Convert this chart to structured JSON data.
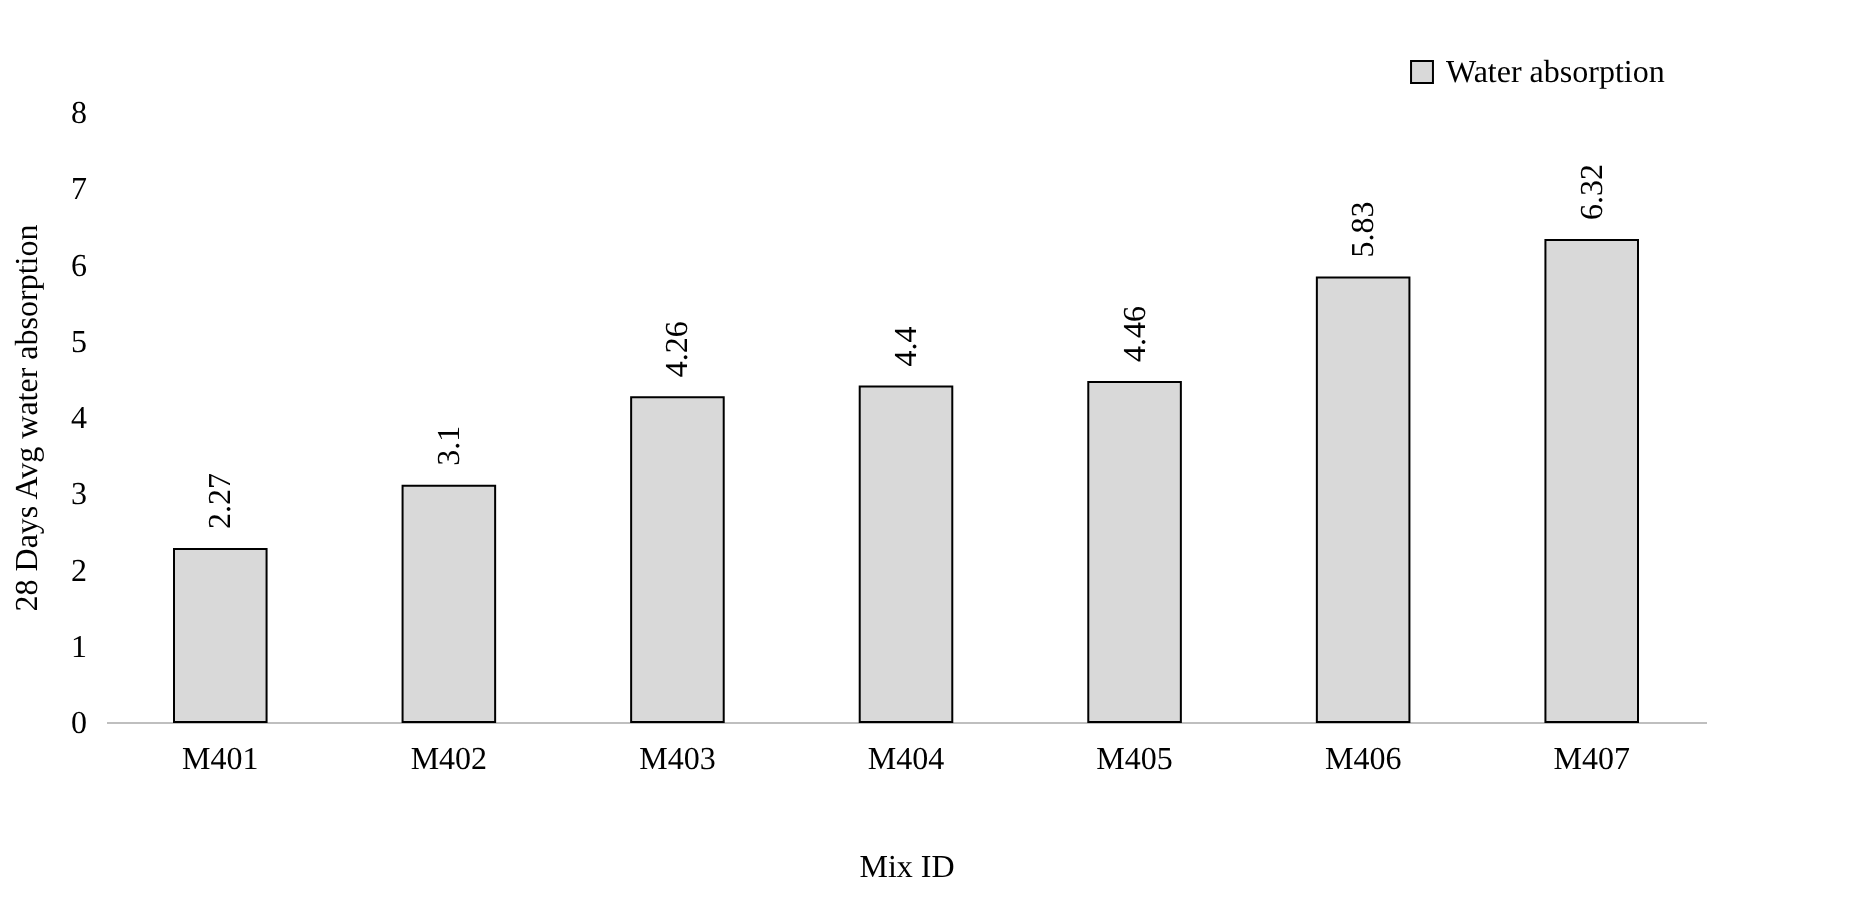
{
  "chart_data": {
    "type": "bar",
    "xlabel": "Mix ID",
    "ylabel": "28 Days Avg water absorption",
    "categories": [
      "M401",
      "M402",
      "M403",
      "M404",
      "M405",
      "M406",
      "M407"
    ],
    "series": [
      {
        "name": "Water absorption",
        "color": "#d9d9d9",
        "values": [
          2.27,
          3.1,
          4.26,
          4.4,
          4.46,
          5.83,
          6.32
        ]
      }
    ],
    "ylim": [
      0,
      8
    ],
    "yticks": [
      0,
      1,
      2,
      3,
      4,
      5,
      6,
      7,
      8
    ],
    "grid": false,
    "legend": "top right",
    "data_labels": true
  }
}
